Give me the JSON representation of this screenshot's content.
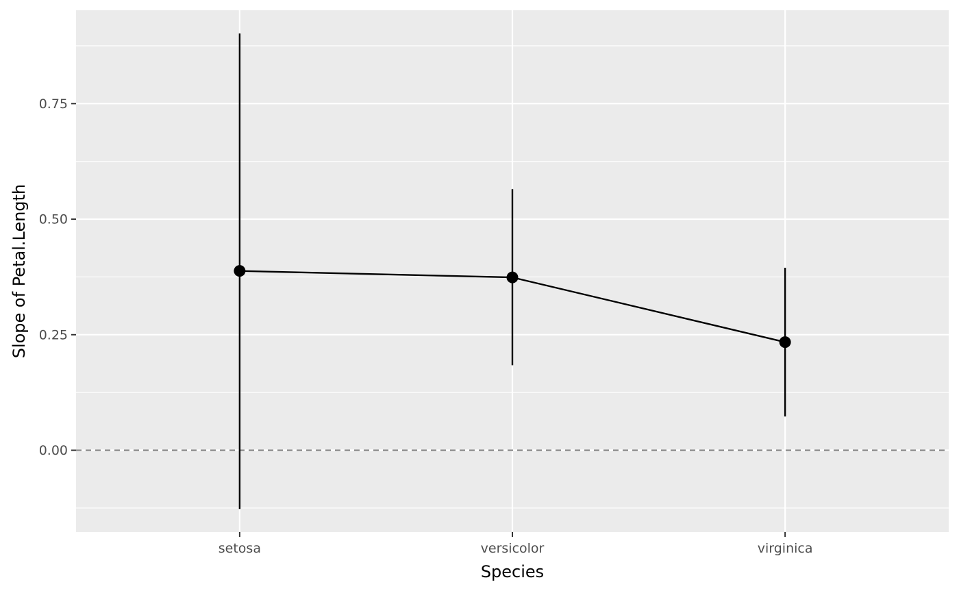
{
  "chart_data": {
    "type": "line",
    "title": "",
    "xlabel": "Species",
    "ylabel": "Slope of Petal.Length",
    "categories": [
      "setosa",
      "versicolor",
      "virginica"
    ],
    "series": [
      {
        "values": [
          0.388,
          0.374,
          0.234
        ],
        "lower": [
          -0.127,
          0.184,
          0.073
        ],
        "upper": [
          0.902,
          0.565,
          0.395
        ]
      }
    ],
    "y_ticks": [
      0.0,
      0.25,
      0.5,
      0.75
    ],
    "y_tick_labels": [
      "0.00",
      "0.25",
      "0.50",
      "0.75"
    ],
    "ylim": [
      -0.177,
      0.952
    ],
    "reference_line": {
      "y": 0,
      "style": "dashed"
    },
    "grid": true,
    "legend": "none",
    "colors": {
      "panel_background": "#EBEBEB",
      "grid_major": "#FFFFFF",
      "series": "#000000",
      "reference_line": "#808080",
      "tick_text": "#4D4D4D",
      "tick_mark": "#333333"
    }
  }
}
